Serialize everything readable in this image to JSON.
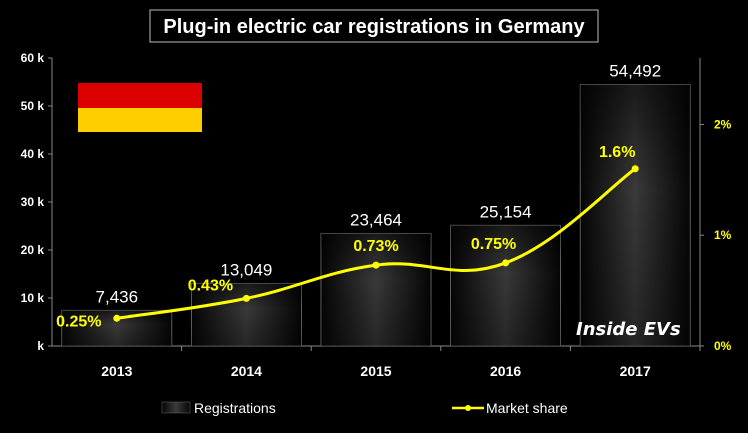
{
  "chart_data": {
    "type": "bar",
    "title": "Plug-in electric car registrations in Germany",
    "categories": [
      "2013",
      "2014",
      "2015",
      "2016",
      "2017"
    ],
    "series": [
      {
        "name": "Registrations",
        "type": "bar",
        "axis": "left",
        "values": [
          7436,
          13049,
          23464,
          25154,
          54492
        ],
        "labels": [
          "7,436",
          "13,049",
          "23,464",
          "25,154",
          "54,492"
        ]
      },
      {
        "name": "Market share",
        "type": "line",
        "axis": "right",
        "values": [
          0.25,
          0.43,
          0.73,
          0.75,
          1.6
        ],
        "labels": [
          "0.25%",
          "0.43%",
          "0.73%",
          "0.75%",
          "1.6%"
        ]
      }
    ],
    "y_left": {
      "ylim": [
        0,
        60000
      ],
      "ticks": [
        "k",
        "10 k",
        "20 k",
        "30 k",
        "40 k",
        "50 k",
        "60 k"
      ]
    },
    "y_right": {
      "ylim": [
        0,
        2.6
      ],
      "ticks": [
        "0%",
        "1%",
        "2%"
      ]
    },
    "legend_position": "bottom",
    "grid": false,
    "colors": {
      "background": "#000000",
      "bar": "#111111",
      "line": "#ffff00",
      "text": "#ffffff"
    }
  },
  "watermark": "Inside EVs",
  "flag": {
    "colors": [
      "#000000",
      "#dd0000",
      "#ffce00"
    ]
  }
}
